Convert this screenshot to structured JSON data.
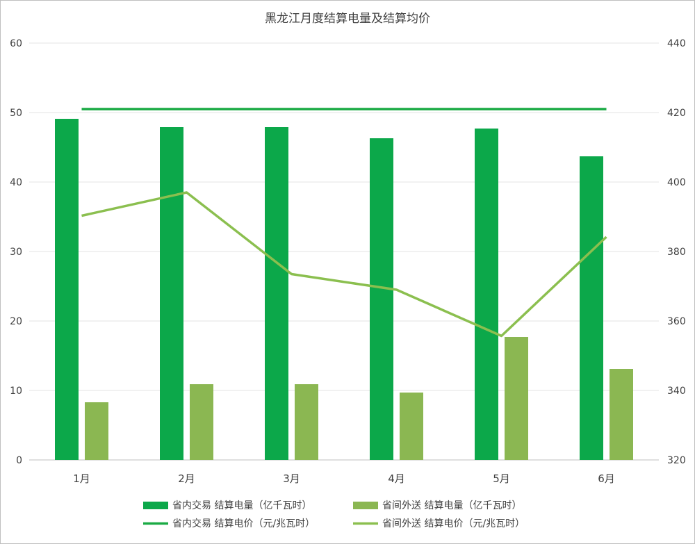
{
  "chart_data": {
    "type": "bar",
    "title": "黑龙江月度结算电量及结算均价",
    "categories": [
      "1月",
      "2月",
      "3月",
      "4月",
      "5月",
      "6月"
    ],
    "y_left": {
      "min": 0,
      "max": 60,
      "step": 10,
      "ticks": [
        "0",
        "10",
        "20",
        "30",
        "40",
        "50",
        "60"
      ]
    },
    "y_right": {
      "min": 320,
      "max": 440,
      "step": 20,
      "ticks": [
        "320",
        "340",
        "360",
        "380",
        "400",
        "420",
        "440"
      ]
    },
    "grid": true,
    "legend_position": "bottom",
    "series": [
      {
        "name": "省内交易 结算电量（亿千瓦时）",
        "kind": "bar",
        "axis": "left",
        "color": "#0ca84a",
        "values": [
          49.1,
          47.9,
          47.9,
          46.3,
          47.7,
          43.7
        ]
      },
      {
        "name": "省间外送 结算电量（亿千瓦时）",
        "kind": "bar",
        "axis": "left",
        "color": "#8bb752",
        "values": [
          8.3,
          10.9,
          10.9,
          9.7,
          17.7,
          13.1
        ]
      },
      {
        "name": "省内交易 结算电价（元/兆瓦时）",
        "kind": "line",
        "axis": "right",
        "color": "#1aaa44",
        "values": [
          421,
          421,
          421,
          421,
          421,
          421
        ]
      },
      {
        "name": "省间外送 结算电价（元/兆瓦时）",
        "kind": "line",
        "axis": "right",
        "color": "#8bbf4f",
        "values": [
          390.3,
          397.0,
          373.5,
          369.0,
          355.7,
          384.2
        ]
      }
    ]
  }
}
